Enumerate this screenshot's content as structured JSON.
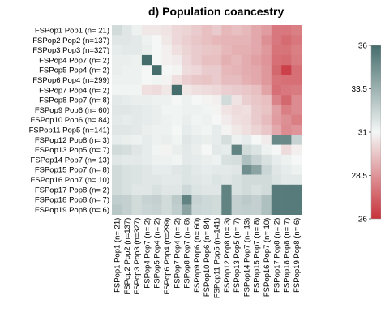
{
  "chart_data": {
    "type": "heatmap",
    "title": "d) Population coancestry",
    "labels": [
      "FSPop1 Pop1 (n= 21)",
      "FSPop2 Pop2 (n=137)",
      "FSPop3 Pop3 (n=327)",
      "FSPop4 Pop7 (n=  2)",
      "FSPop5 Pop4 (n=  2)",
      "FSPop6 Pop4 (n=299)",
      "FSPop7 Pop4 (n=  2)",
      "FSPop8 Pop7 (n=  8)",
      "FSPop9 Pop6 (n= 60)",
      "FSPop10 Pop6 (n= 84)",
      "FSPop11 Pop5 (n=141)",
      "FSPop12 Pop8 (n=  3)",
      "FSPop13 Pop5 (n=  7)",
      "FSPop14 Pop7 (n= 13)",
      "FSPop15 Pop7 (n=  8)",
      "FSPop16 Pop7 (n= 10)",
      "FSPop17 Pop8 (n=  2)",
      "FSPop18 Pop8 (n=  7)",
      "FSPop19 Pop8 (n=  6)"
    ],
    "color_scale": {
      "min": 26,
      "max": 36,
      "ticks": [
        36,
        33.5,
        31,
        28.5,
        26
      ],
      "low_color": "#c8313a",
      "mid_color": "#f4f7f6",
      "high_color": "#456d6c"
    },
    "matrix": [
      [
        32.0,
        31.6,
        31.2,
        30.6,
        30.6,
        30.5,
        30.2,
        30.1,
        29.9,
        29.6,
        29.9,
        29.4,
        29.6,
        29.4,
        29.0,
        28.7,
        27.8,
        27.8,
        28.0
      ],
      [
        31.6,
        31.6,
        31.5,
        31.2,
        31.0,
        30.6,
        30.2,
        30.0,
        29.8,
        29.6,
        29.4,
        29.3,
        29.3,
        29.3,
        29.0,
        28.4,
        27.8,
        27.5,
        27.8
      ],
      [
        31.4,
        31.5,
        31.5,
        31.3,
        31.0,
        30.8,
        30.4,
        30.1,
        29.9,
        29.8,
        29.7,
        29.4,
        29.2,
        29.2,
        29.0,
        28.6,
        27.7,
        27.7,
        28.0
      ],
      [
        31.3,
        31.3,
        31.2,
        36.0,
        31.0,
        30.8,
        30.7,
        30.2,
        29.9,
        29.6,
        29.6,
        29.2,
        29.4,
        29.1,
        28.8,
        28.5,
        27.6,
        27.5,
        27.9
      ],
      [
        31.3,
        31.2,
        31.2,
        31.0,
        36.0,
        31.0,
        30.9,
        30.3,
        30.2,
        29.9,
        29.9,
        29.4,
        29.3,
        29.1,
        29.0,
        28.6,
        27.4,
        26.4,
        27.6
      ],
      [
        31.2,
        31.2,
        31.2,
        31.0,
        31.1,
        30.9,
        30.4,
        30.0,
        29.8,
        29.7,
        29.9,
        29.5,
        29.5,
        29.2,
        29.0,
        28.6,
        27.7,
        27.6,
        27.6
      ],
      [
        31.1,
        31.1,
        31.1,
        30.4,
        30.3,
        30.6,
        36.0,
        30.6,
        30.4,
        30.3,
        30.2,
        30.0,
        29.9,
        29.8,
        29.6,
        28.9,
        27.6,
        27.8,
        27.9
      ],
      [
        31.5,
        31.4,
        31.3,
        31.3,
        31.2,
        31.2,
        31.0,
        31.2,
        31.0,
        30.9,
        30.8,
        32.0,
        30.5,
        30.0,
        29.8,
        29.6,
        28.1,
        27.4,
        28.3
      ],
      [
        31.6,
        31.6,
        31.5,
        31.4,
        31.3,
        31.1,
        31.1,
        31.2,
        31.2,
        31.1,
        30.9,
        30.5,
        30.3,
        30.4,
        29.9,
        29.7,
        28.8,
        28.0,
        28.3
      ],
      [
        31.5,
        31.4,
        31.5,
        31.4,
        31.3,
        31.2,
        31.1,
        31.3,
        31.1,
        31.2,
        31.0,
        30.7,
        30.4,
        30.3,
        29.9,
        29.5,
        28.7,
        28.4,
        28.0
      ],
      [
        31.6,
        31.6,
        31.5,
        31.3,
        31.2,
        31.2,
        31.0,
        31.4,
        31.2,
        31.1,
        31.4,
        30.9,
        30.6,
        30.4,
        30.1,
        29.8,
        29.0,
        28.3,
        28.5
      ],
      [
        31.4,
        31.3,
        31.2,
        31.4,
        31.2,
        31.3,
        31.1,
        31.6,
        31.4,
        31.3,
        31.4,
        31.9,
        31.2,
        31.4,
        31.0,
        30.7,
        35.0,
        35.0,
        32.3
      ],
      [
        32.0,
        31.9,
        31.6,
        31.4,
        31.1,
        30.9,
        31.3,
        31.5,
        31.3,
        31.0,
        31.5,
        31.4,
        35.2,
        32.0,
        31.7,
        31.2,
        31.0,
        30.3,
        30.8
      ],
      [
        31.6,
        31.5,
        31.5,
        31.4,
        31.2,
        31.2,
        31.1,
        31.5,
        31.4,
        31.3,
        31.2,
        31.8,
        31.9,
        33.0,
        32.3,
        31.8,
        31.4,
        31.2,
        31.0
      ],
      [
        32.0,
        31.8,
        31.7,
        31.6,
        31.4,
        31.4,
        31.6,
        31.7,
        31.5,
        31.4,
        31.5,
        31.5,
        31.6,
        34.8,
        34.0,
        32.2,
        31.6,
        31.4,
        31.2
      ],
      [
        32.0,
        31.8,
        31.7,
        31.6,
        31.6,
        31.5,
        31.5,
        31.7,
        31.6,
        31.5,
        31.7,
        31.6,
        31.8,
        32.0,
        32.0,
        32.0,
        31.7,
        31.5,
        31.5
      ],
      [
        32.0,
        31.8,
        31.6,
        31.6,
        31.8,
        31.6,
        31.6,
        32.1,
        31.7,
        31.6,
        31.6,
        35.2,
        31.8,
        32.0,
        31.8,
        32.0,
        35.5,
        35.5,
        35.5
      ],
      [
        32.5,
        32.4,
        32.0,
        32.3,
        32.4,
        32.0,
        32.6,
        35.2,
        32.3,
        32.1,
        32.0,
        35.2,
        32.4,
        32.6,
        32.4,
        33.0,
        35.5,
        35.5,
        35.5
      ],
      [
        32.7,
        32.4,
        32.0,
        32.2,
        32.3,
        32.0,
        32.5,
        34.0,
        32.2,
        32.1,
        32.0,
        35.2,
        32.4,
        32.5,
        32.4,
        33.0,
        35.5,
        35.5,
        35.5
      ]
    ]
  }
}
